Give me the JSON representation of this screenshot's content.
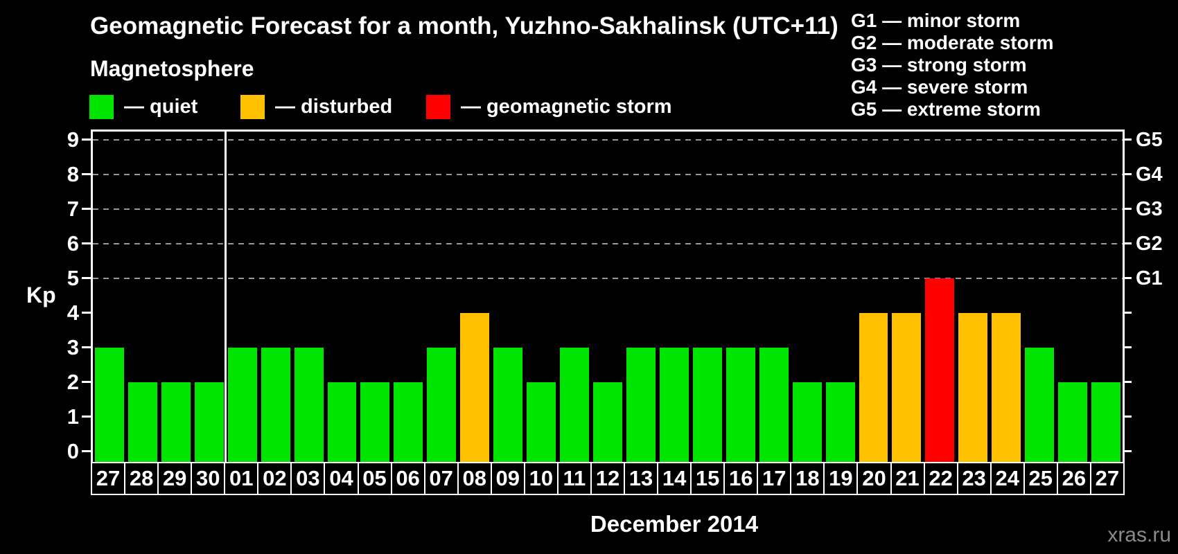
{
  "title": "Geomagnetic Forecast for a month, Yuzhno-Sakhalinsk (UTC+11)",
  "subtitle": "Magnetosphere",
  "legend": {
    "items": [
      {
        "status": "quiet",
        "label": "— quiet"
      },
      {
        "status": "disturbed",
        "label": "— disturbed"
      },
      {
        "status": "storm",
        "label": "— geomagnetic storm"
      }
    ]
  },
  "g_scale_legend": [
    "G1 — minor storm",
    "G2 — moderate storm",
    "G3 — strong storm",
    "G4 — severe storm",
    "G5 — extreme storm"
  ],
  "colors": {
    "quiet": "#00e400",
    "disturbed": "#ffc000",
    "storm": "#ff0000",
    "axis": "#ffffff",
    "grid": "#999999",
    "background": "#000000",
    "watermark": "#8a8a8a"
  },
  "axis": {
    "y_label": "Kp",
    "kp_ticks": [
      0,
      1,
      2,
      3,
      4,
      5,
      6,
      7,
      8,
      9
    ],
    "right_labels": [
      {
        "kp": 5,
        "label": "G1"
      },
      {
        "kp": 6,
        "label": "G2"
      },
      {
        "kp": 7,
        "label": "G3"
      },
      {
        "kp": 8,
        "label": "G4"
      },
      {
        "kp": 9,
        "label": "G5"
      }
    ]
  },
  "x_axis_title": "December 2014",
  "watermark": "xras.ru",
  "chart_data": {
    "type": "bar",
    "title": "Geomagnetic Forecast for a month, Yuzhno-Sakhalinsk (UTC+11)",
    "ylabel": "Kp",
    "ylim": [
      0,
      9
    ],
    "grid": "dashed horizontal lines at Kp 5-9 only",
    "gridlines_kp": [
      5,
      6,
      7,
      8,
      9
    ],
    "month_separator_after_index": 3,
    "categories": [
      "27",
      "28",
      "29",
      "30",
      "01",
      "02",
      "03",
      "04",
      "05",
      "06",
      "07",
      "08",
      "09",
      "10",
      "11",
      "12",
      "13",
      "14",
      "15",
      "16",
      "17",
      "18",
      "19",
      "20",
      "21",
      "22",
      "23",
      "24",
      "25",
      "26",
      "27"
    ],
    "values": [
      3,
      2,
      2,
      2,
      3,
      3,
      3,
      2,
      2,
      2,
      3,
      4,
      3,
      2,
      3,
      2,
      3,
      3,
      3,
      3,
      3,
      2,
      2,
      4,
      4,
      5,
      4,
      4,
      3,
      2,
      2
    ],
    "statuses": [
      "quiet",
      "quiet",
      "quiet",
      "quiet",
      "quiet",
      "quiet",
      "quiet",
      "quiet",
      "quiet",
      "quiet",
      "quiet",
      "disturbed",
      "quiet",
      "quiet",
      "quiet",
      "quiet",
      "quiet",
      "quiet",
      "quiet",
      "quiet",
      "quiet",
      "quiet",
      "quiet",
      "disturbed",
      "disturbed",
      "storm",
      "disturbed",
      "disturbed",
      "quiet",
      "quiet",
      "quiet"
    ]
  }
}
